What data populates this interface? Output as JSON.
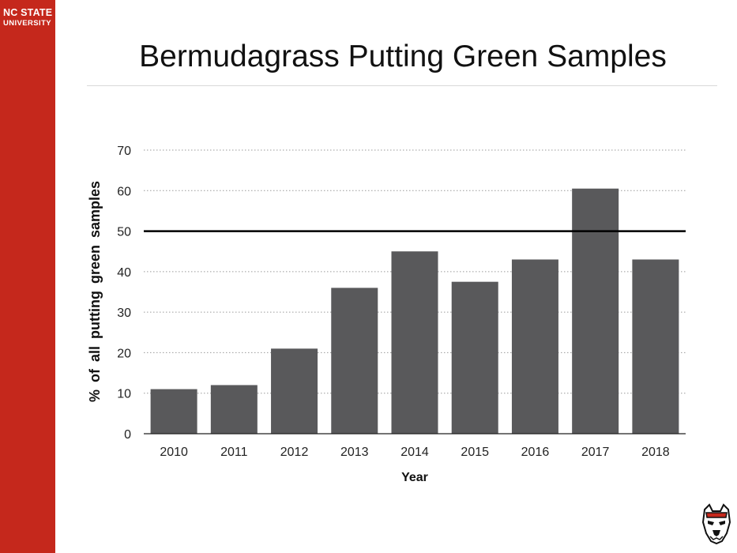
{
  "brand": {
    "line1": "NC STATE",
    "line2": "UNIVERSITY",
    "color": "#c5281c"
  },
  "slide": {
    "title": "Bermudagrass Putting Green Samples"
  },
  "mascot": {
    "icon": "wolf-head-icon"
  },
  "chart_data": {
    "type": "bar",
    "title": "",
    "xlabel": "Year",
    "ylabel": "% of all putting green samples",
    "categories": [
      "2010",
      "2011",
      "2012",
      "2013",
      "2014",
      "2015",
      "2016",
      "2017",
      "2018"
    ],
    "values": [
      11,
      12,
      21,
      36,
      45,
      37.5,
      43,
      60.5,
      43
    ],
    "ylim": [
      0,
      70
    ],
    "yticks": [
      0,
      10,
      20,
      30,
      40,
      50,
      60,
      70
    ],
    "grid": true,
    "reference_line": 50,
    "bar_color": "#59595b"
  }
}
